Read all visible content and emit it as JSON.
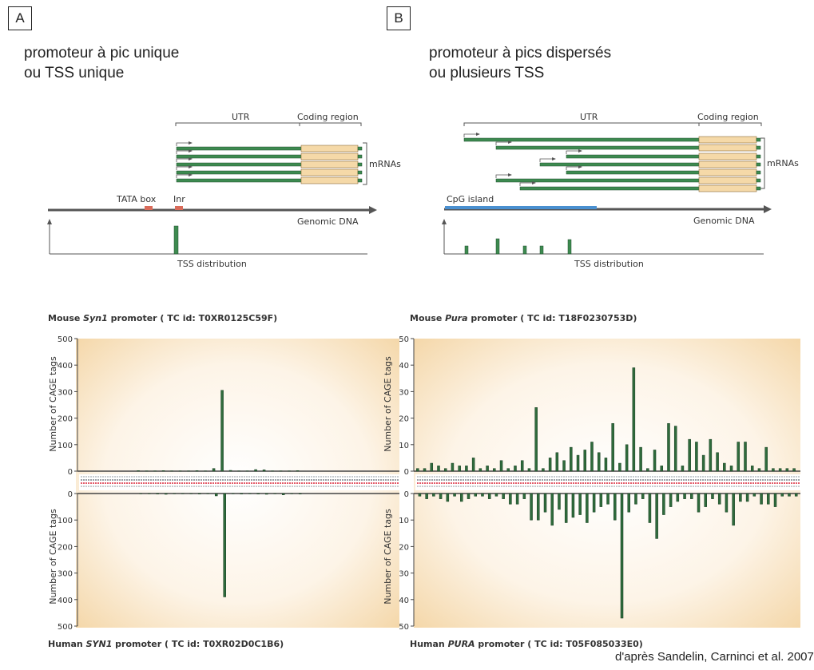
{
  "panel_a": {
    "letter": "A",
    "title_line1": "promoteur à pic unique",
    "title_line2": "ou TSS unique"
  },
  "panel_b": {
    "letter": "B",
    "title_line1": "promoteur à pics dispersés",
    "title_line2": "ou plusieurs TSS"
  },
  "schematic_a": {
    "utr_label": "UTR",
    "coding_label": "Coding region",
    "mrnas_label": "mRNAs",
    "tata_label": "TATA box",
    "inr_label": "Inr",
    "genomic_label": "Genomic DNA",
    "tss_label": "TSS distribution"
  },
  "schematic_b": {
    "utr_label": "UTR",
    "coding_label": "Coding region",
    "mrnas_label": "mRNAs",
    "cpg_label": "CpG island",
    "genomic_label": "Genomic DNA",
    "tss_label": "TSS distribution"
  },
  "chart_a": {
    "title_prefix": "Mouse ",
    "title_gene": "Syn1",
    "title_suffix": " promoter ( TC id: T0XR0125C59F)",
    "bottom_prefix": "Human ",
    "bottom_gene": "SYN1",
    "bottom_suffix": " promoter ( TC id: T0XR02D0C1B6)",
    "ylabel": "Number of CAGE tags",
    "top_ticks": [
      "500",
      "400",
      "300",
      "200",
      "100",
      "0"
    ],
    "bottom_ticks": [
      "0",
      "100",
      "200",
      "300",
      "400",
      "500"
    ]
  },
  "chart_b": {
    "title_prefix": "Mouse ",
    "title_gene": "Pura",
    "title_suffix": " promoter ( TC id: T18F0230753D)",
    "bottom_prefix": "Human ",
    "bottom_gene": "PURA",
    "bottom_suffix": " promoter ( TC id: T05F085033E0)",
    "ylabel": "Number of CAGE tags",
    "top_ticks": [
      "50",
      "40",
      "30",
      "20",
      "10",
      "0"
    ],
    "bottom_ticks": [
      "0",
      "10",
      "20",
      "30",
      "40",
      "50"
    ]
  },
  "credit": "d'après Sandelin, Carninci et al. 2007",
  "colors": {
    "bar": "#2f6b3c",
    "utr": "#3d8a50",
    "coding": "#f5d9a8",
    "cpg": "#4a90d0",
    "box": "#d96b5a"
  },
  "chart_data": [
    {
      "type": "bar",
      "title": "Mouse Syn1 promoter ( TC id: T0XR0125C59F)",
      "ylabel": "Number of CAGE tags",
      "ylim": [
        0,
        500
      ],
      "series": [
        {
          "name": "Mouse Syn1",
          "values": [
            2,
            1,
            1,
            2,
            1,
            1,
            1,
            2,
            1,
            10,
            305,
            3,
            1,
            1,
            6,
            5,
            1,
            1,
            1,
            2
          ]
        },
        {
          "name": "Human SYN1",
          "values": [
            1,
            1,
            2,
            3,
            1,
            1,
            1,
            2,
            1,
            9,
            390,
            1,
            2,
            1,
            2,
            3,
            1,
            5,
            1,
            2
          ]
        }
      ]
    },
    {
      "type": "bar",
      "title": "Mouse Pura promoter ( TC id: T18F0230753D)",
      "ylabel": "Number of CAGE tags",
      "ylim": [
        0,
        50
      ],
      "series": [
        {
          "name": "Mouse Pura",
          "values": [
            1,
            1,
            3,
            2,
            1,
            3,
            2,
            2,
            5,
            1,
            2,
            1,
            4,
            1,
            2,
            4,
            1,
            24,
            1,
            5,
            7,
            4,
            9,
            6,
            8,
            11,
            7,
            5,
            18,
            3,
            10,
            39,
            9,
            1,
            8,
            2,
            18,
            17,
            2,
            12,
            11,
            6,
            12,
            7,
            3,
            2,
            11,
            11,
            2,
            1,
            9,
            1,
            1,
            1,
            1
          ]
        },
        {
          "name": "Human PURA",
          "values": [
            1,
            2,
            1,
            2,
            3,
            1,
            3,
            2,
            1,
            1,
            2,
            1,
            2,
            4,
            4,
            2,
            10,
            10,
            7,
            12,
            6,
            11,
            9,
            8,
            11,
            7,
            5,
            4,
            10,
            47,
            7,
            4,
            2,
            11,
            17,
            8,
            5,
            3,
            2,
            2,
            7,
            5,
            2,
            4,
            7,
            12,
            3,
            3,
            1,
            4,
            4,
            5,
            1,
            1,
            1
          ]
        }
      ]
    }
  ]
}
